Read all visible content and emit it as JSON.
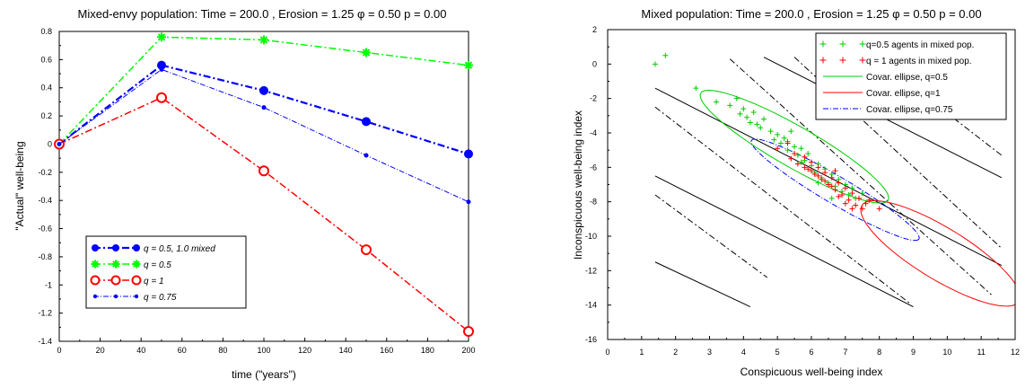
{
  "chart_data": [
    {
      "type": "line",
      "title": "Mixed-envy population: Time =   200.0   , Erosion =  1.25   φ =   0.50   p =   0.00",
      "xlabel": "time (\"years\")",
      "ylabel": "\"Actual\" well-being",
      "xlim": [
        0,
        200
      ],
      "ylim": [
        -1.4,
        0.8
      ],
      "grid": false,
      "legend_position": "bottom-left",
      "x_ticks": [
        "0",
        "20",
        "40",
        "60",
        "80",
        "100",
        "120",
        "140",
        "160",
        "180",
        "200"
      ],
      "y_ticks": [
        "0.8",
        "0.6",
        "0.4",
        "0.2",
        "0",
        "-0.2",
        "-0.4",
        "-0.6",
        "-0.8",
        "-1",
        "-1.2",
        "-1.4"
      ],
      "series": [
        {
          "name": "q = 0.5, 1.0 mixed",
          "color": "#0000ff",
          "marker": "filled-circle",
          "x": [
            0,
            50,
            100,
            150,
            200
          ],
          "y": [
            0.0,
            0.56,
            0.38,
            0.16,
            -0.07
          ]
        },
        {
          "name": "q = 0.5",
          "color": "#00ff00",
          "marker": "asterisk",
          "x": [
            0,
            50,
            100,
            150,
            200
          ],
          "y": [
            0.0,
            0.76,
            0.74,
            0.65,
            0.56
          ]
        },
        {
          "name": "q = 1",
          "color": "#ff0000",
          "marker": "open-circle",
          "x": [
            0,
            50,
            100,
            150,
            200
          ],
          "y": [
            0.0,
            0.33,
            -0.19,
            -0.75,
            -1.33
          ]
        },
        {
          "name": "q = 0.75",
          "color": "#0000ff",
          "marker": "dot",
          "x": [
            0,
            50,
            100,
            150,
            200
          ],
          "y": [
            0.0,
            0.53,
            0.26,
            -0.08,
            -0.41
          ]
        }
      ]
    },
    {
      "type": "scatter",
      "title": "Mixed population: Time =   200.0   , Erosion =  1.25   φ =   0.50   p =   0.00",
      "xlabel": "Conspicuous well-being index",
      "ylabel": "Inconspicuous well-being index",
      "xlim": [
        0,
        12
      ],
      "ylim": [
        -16,
        2
      ],
      "grid": false,
      "legend_position": "top-right",
      "x_ticks": [
        "0",
        "1",
        "2",
        "3",
        "4",
        "5",
        "6",
        "7",
        "8",
        "9",
        "10",
        "11",
        "12"
      ],
      "y_ticks": [
        "2",
        "0",
        "-2",
        "-4",
        "-6",
        "-8",
        "-10",
        "-12",
        "-14",
        "-16"
      ],
      "legend": [
        {
          "label": "q=0.5 agents in mixed pop.",
          "color": "#00cc00",
          "style": "plus"
        },
        {
          "label": "q = 1 agents in mixed pop.",
          "color": "#ff0000",
          "style": "plus"
        },
        {
          "label": "Covar. ellipse, q=0.5",
          "color": "#00cc00",
          "style": "solid"
        },
        {
          "label": "Covar. ellipse, q=1",
          "color": "#ff0000",
          "style": "solid"
        },
        {
          "label": "Covar. ellipse, q=0.75",
          "color": "#0000ff",
          "style": "dashdot"
        }
      ],
      "ellipses": [
        {
          "name": "q=0.5",
          "color": "#00cc00",
          "style": "solid",
          "center": [
            5.5,
            -4.8
          ],
          "semi_major": 4.2,
          "semi_minor": 0.9,
          "slope": -1.2
        },
        {
          "name": "q=1",
          "color": "#ff0000",
          "style": "solid",
          "center": [
            9.8,
            -11.0
          ],
          "semi_major": 3.7,
          "semi_minor": 1.1,
          "slope": -1.38
        },
        {
          "name": "q=0.75",
          "color": "#0000ff",
          "style": "dashdot",
          "center": [
            6.7,
            -7.3
          ],
          "semi_major": 3.8,
          "semi_minor": 0.6,
          "slope": -1.2
        }
      ],
      "reference_lines": [
        {
          "style": "solid",
          "x": [
            1.4,
            4.2
          ],
          "y": [
            -11.5,
            -14.1
          ]
        },
        {
          "style": "solid",
          "x": [
            1.4,
            9.0
          ],
          "y": [
            -6.5,
            -14.1
          ]
        },
        {
          "style": "solid",
          "x": [
            1.4,
            11.6
          ],
          "y": [
            -1.4,
            -11.7
          ]
        },
        {
          "style": "solid",
          "x": [
            4.6,
            11.6
          ],
          "y": [
            0.4,
            -6.6
          ]
        },
        {
          "style": "dashdot",
          "x": [
            1.4,
            4.7
          ],
          "y": [
            -7.6,
            -12.4
          ]
        },
        {
          "style": "dashdot",
          "x": [
            1.4,
            8.9
          ],
          "y": [
            -2.5,
            -13.9
          ]
        },
        {
          "style": "dashdot",
          "x": [
            3.6,
            11.3
          ],
          "y": [
            0.3,
            -13.4
          ]
        },
        {
          "style": "dashdot",
          "x": [
            5.5,
            11.6
          ],
          "y": [
            0.4,
            -10.7
          ]
        },
        {
          "style": "dashdot",
          "x": [
            8.0,
            11.6
          ],
          "y": [
            0.2,
            -5.3
          ]
        }
      ],
      "points_q05": [
        [
          1.4,
          0.0
        ],
        [
          1.7,
          0.5
        ],
        [
          2.6,
          -1.4
        ],
        [
          3.2,
          -2.2
        ],
        [
          3.6,
          -2.4
        ],
        [
          3.8,
          -2.0
        ],
        [
          4.0,
          -2.6
        ],
        [
          4.1,
          -3.1
        ],
        [
          4.3,
          -2.8
        ],
        [
          4.4,
          -3.5
        ],
        [
          4.6,
          -3.2
        ],
        [
          4.8,
          -3.9
        ],
        [
          4.9,
          -4.4
        ],
        [
          5.0,
          -4.1
        ],
        [
          5.1,
          -4.6
        ],
        [
          5.2,
          -4.3
        ],
        [
          5.3,
          -5.0
        ],
        [
          5.4,
          -3.9
        ],
        [
          5.5,
          -4.8
        ],
        [
          5.6,
          -5.3
        ],
        [
          5.7,
          -4.9
        ],
        [
          5.8,
          -5.6
        ],
        [
          5.9,
          -5.2
        ],
        [
          6.0,
          -5.9
        ],
        [
          6.1,
          -6.3
        ],
        [
          6.2,
          -5.8
        ],
        [
          6.3,
          -6.6
        ],
        [
          6.4,
          -6.1
        ],
        [
          6.5,
          -6.9
        ],
        [
          6.6,
          -6.4
        ],
        [
          6.7,
          -7.1
        ],
        [
          6.8,
          -6.7
        ],
        [
          6.9,
          -7.4
        ],
        [
          7.0,
          -7.0
        ],
        [
          7.1,
          -7.6
        ],
        [
          7.2,
          -7.2
        ],
        [
          7.3,
          -7.8
        ],
        [
          7.5,
          -7.5
        ],
        [
          3.9,
          -2.9
        ],
        [
          4.5,
          -3.7
        ],
        [
          5.3,
          -4.5
        ],
        [
          5.7,
          -5.7
        ],
        [
          6.2,
          -6.9
        ],
        [
          6.6,
          -7.8
        ],
        [
          4.2,
          -3.4
        ]
      ],
      "points_q1": [
        [
          5.0,
          -4.9
        ],
        [
          5.3,
          -4.6
        ],
        [
          5.5,
          -5.2
        ],
        [
          5.6,
          -5.8
        ],
        [
          5.8,
          -5.4
        ],
        [
          5.9,
          -6.1
        ],
        [
          6.0,
          -5.7
        ],
        [
          6.1,
          -6.4
        ],
        [
          6.2,
          -6.0
        ],
        [
          6.3,
          -6.7
        ],
        [
          6.4,
          -6.3
        ],
        [
          6.5,
          -7.0
        ],
        [
          6.6,
          -6.6
        ],
        [
          6.7,
          -7.3
        ],
        [
          6.8,
          -6.9
        ],
        [
          6.9,
          -7.6
        ],
        [
          7.0,
          -7.2
        ],
        [
          7.1,
          -7.9
        ],
        [
          7.2,
          -7.5
        ],
        [
          7.3,
          -8.2
        ],
        [
          7.4,
          -7.8
        ],
        [
          7.5,
          -8.4
        ],
        [
          7.0,
          -8.1
        ],
        [
          6.8,
          -7.7
        ],
        [
          6.6,
          -7.1
        ],
        [
          6.4,
          -6.8
        ],
        [
          6.2,
          -6.5
        ],
        [
          6.0,
          -6.2
        ],
        [
          5.8,
          -6.0
        ],
        [
          7.7,
          -7.9
        ],
        [
          8.0,
          -8.4
        ],
        [
          7.6,
          -8.1
        ],
        [
          5.4,
          -5.5
        ],
        [
          6.7,
          -6.2
        ],
        [
          7.2,
          -8.4
        ]
      ]
    }
  ]
}
